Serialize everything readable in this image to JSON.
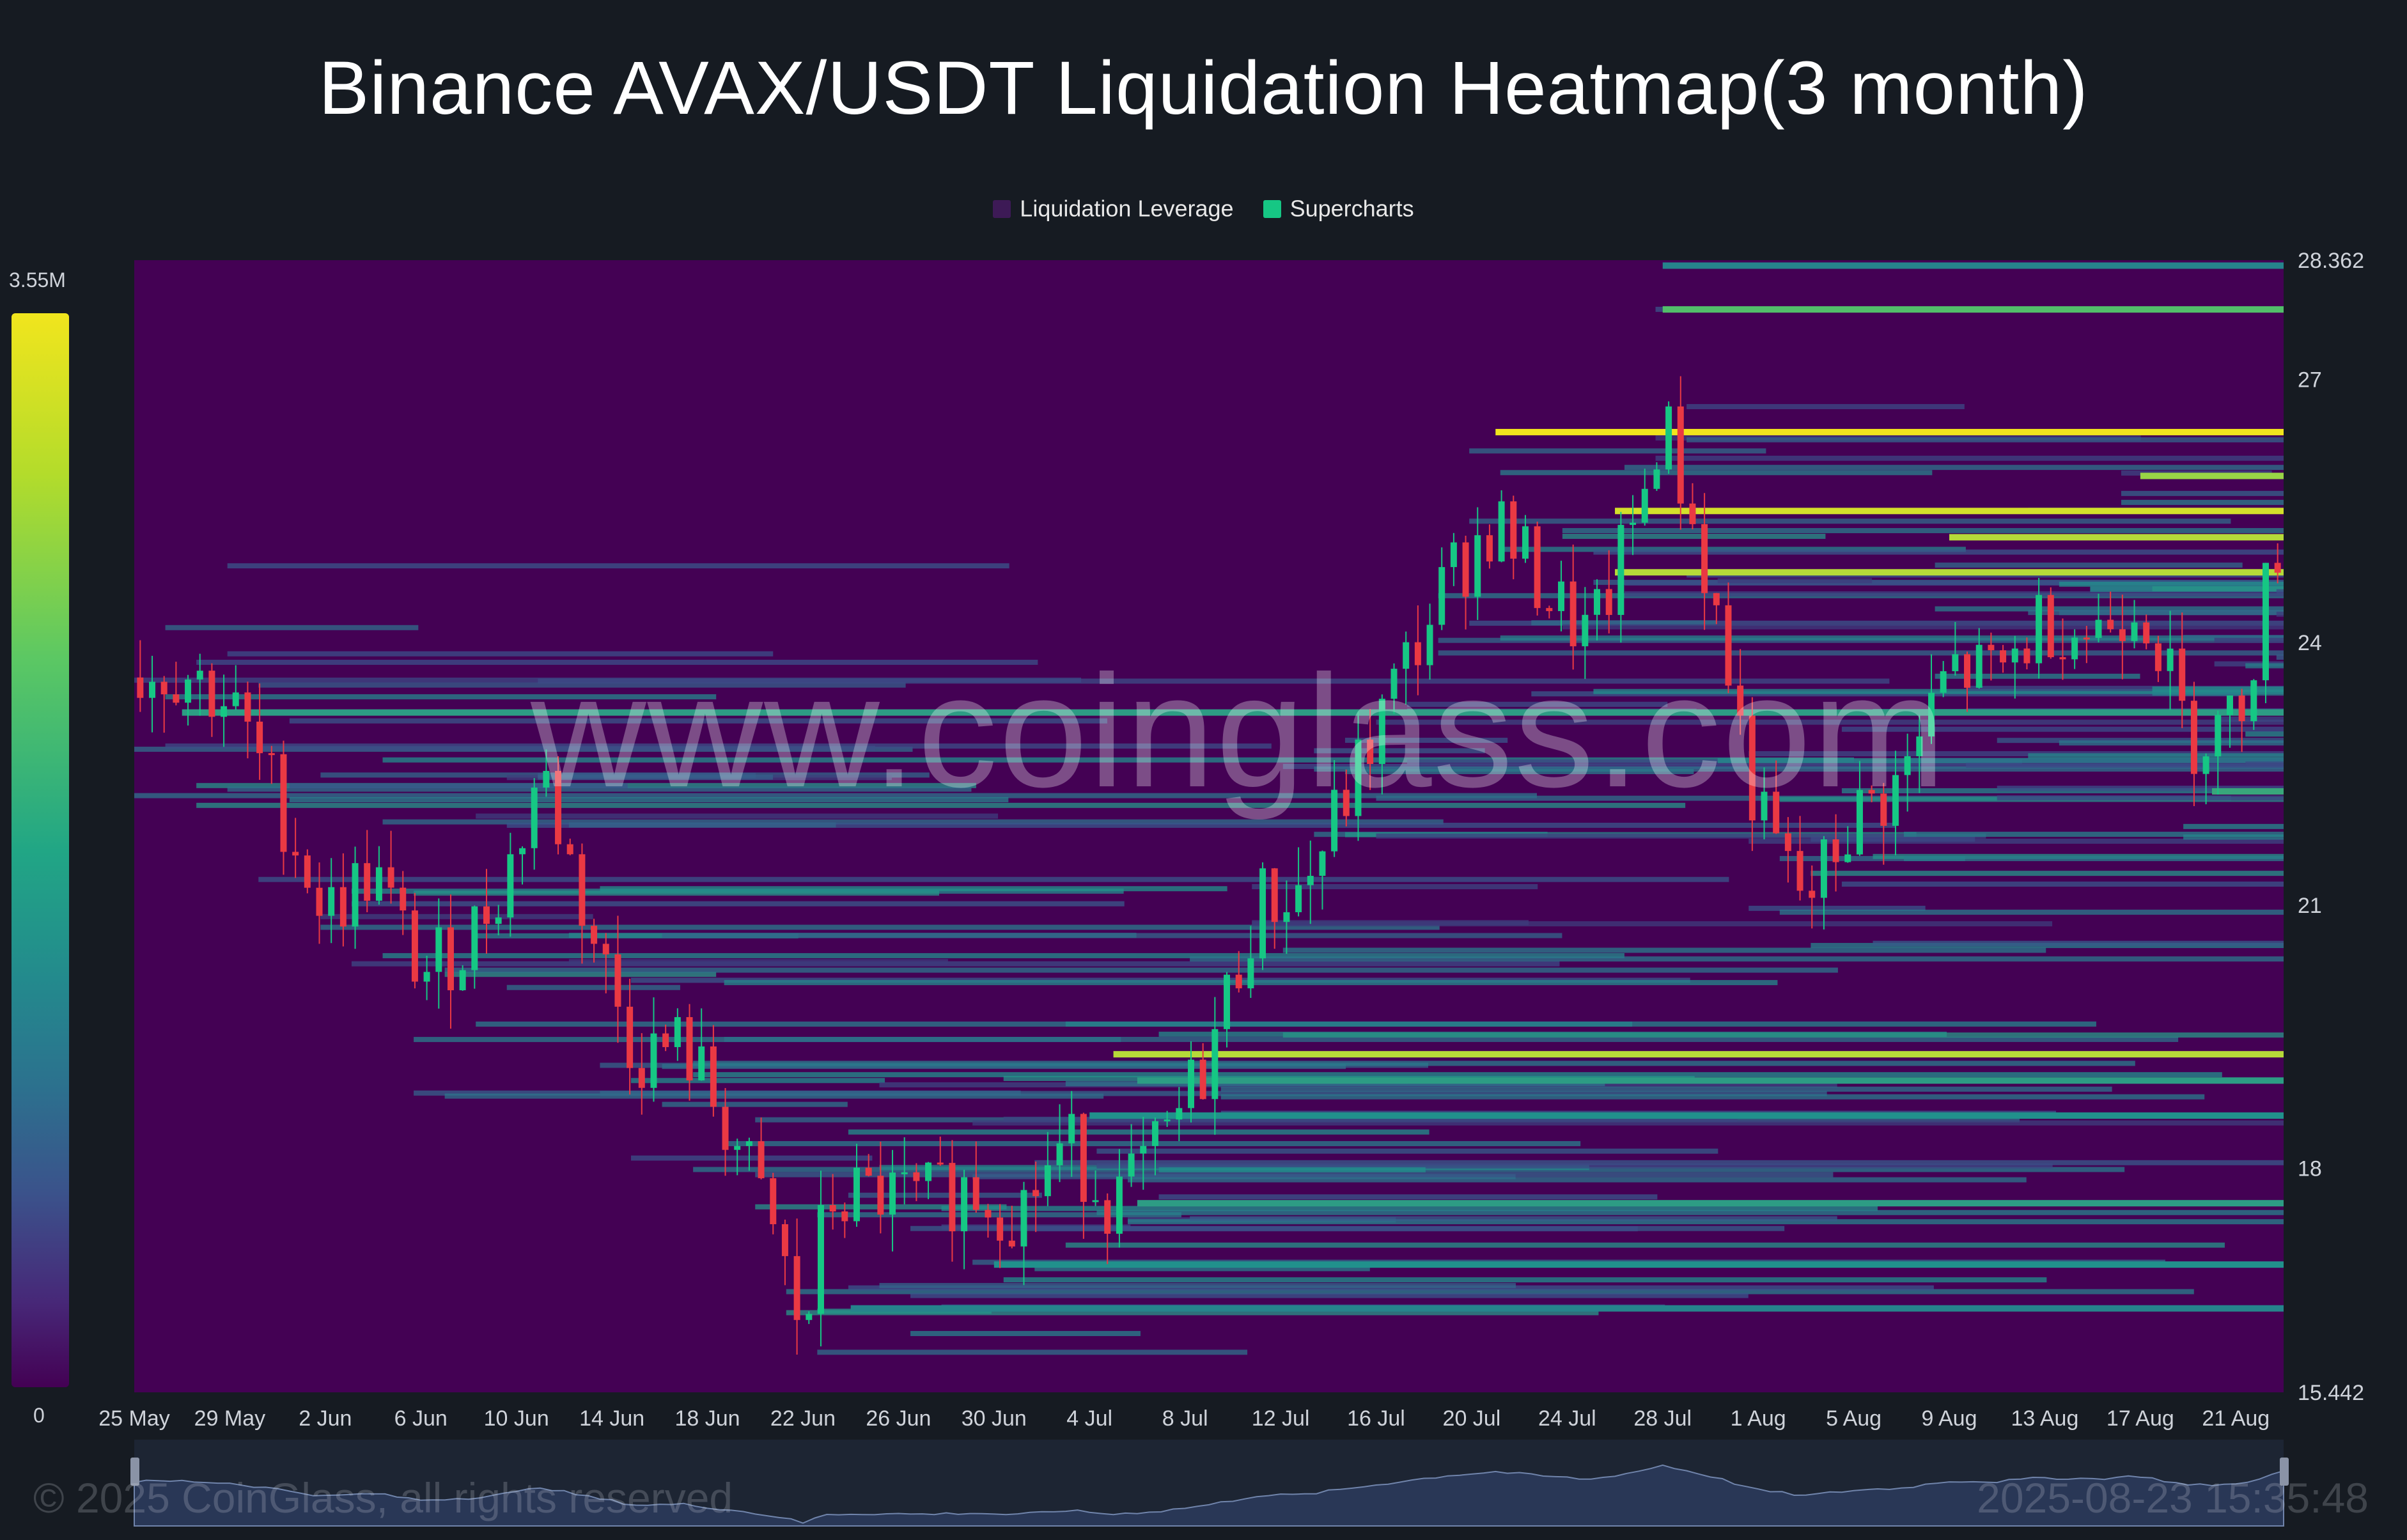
{
  "title": "Binance AVAX/USDT Liquidation Heatmap(3 month)",
  "legend": [
    {
      "label": "Liquidation Leverage",
      "color": "#3d1a56"
    },
    {
      "label": "Supercharts",
      "color": "#16c784"
    }
  ],
  "colorbar": {
    "max_label": "3.55M",
    "min_label": "0"
  },
  "watermark": "www.coinglass.com",
  "footer": {
    "copyright": "© 2025 CoinGlass, all rights reserved",
    "timestamp": "2025-08-23 15:35:48"
  },
  "colors": {
    "background": "#161b22",
    "heatmap_base": "#440154",
    "candle_up": "#16c784",
    "candle_down": "#ea3943",
    "navigator_fill": "#2b3a5a",
    "navigator_line": "#7a8fb8"
  },
  "chart_data": {
    "type": "heatmap",
    "x_tick_labels": [
      "25 May",
      "29 May",
      "2 Jun",
      "6 Jun",
      "10 Jun",
      "14 Jun",
      "18 Jun",
      "22 Jun",
      "26 Jun",
      "30 Jun",
      "4 Jul",
      "8 Jul",
      "12 Jul",
      "16 Jul",
      "20 Jul",
      "24 Jul",
      "28 Jul",
      "1 Aug",
      "5 Aug",
      "9 Aug",
      "13 Aug",
      "17 Aug",
      "21 Aug"
    ],
    "y_tick_labels": [
      "28.362",
      "27",
      "24",
      "21",
      "18",
      "15.442"
    ],
    "y_tick_values": [
      28.362,
      27,
      24,
      21,
      18,
      15.442
    ],
    "ylim": [
      15.442,
      28.362
    ],
    "x_start_day": "2025-05-25",
    "x_end_day": "2025-08-23",
    "price_path_daily": [
      {
        "date": "2025-05-25",
        "price": 23.6
      },
      {
        "date": "2025-05-27",
        "price": 23.7
      },
      {
        "date": "2025-05-29",
        "price": 23.3
      },
      {
        "date": "2025-05-31",
        "price": 22.2
      },
      {
        "date": "2025-06-02",
        "price": 20.9
      },
      {
        "date": "2025-06-04",
        "price": 21.4
      },
      {
        "date": "2025-06-06",
        "price": 20.2
      },
      {
        "date": "2025-06-08",
        "price": 20.6
      },
      {
        "date": "2025-06-10",
        "price": 21.6
      },
      {
        "date": "2025-06-11",
        "price": 22.6
      },
      {
        "date": "2025-06-13",
        "price": 20.8
      },
      {
        "date": "2025-06-15",
        "price": 19.3
      },
      {
        "date": "2025-06-17",
        "price": 19.4
      },
      {
        "date": "2025-06-19",
        "price": 18.4
      },
      {
        "date": "2025-06-21",
        "price": 17.1
      },
      {
        "date": "2025-06-22",
        "price": 16.0
      },
      {
        "date": "2025-06-23",
        "price": 17.6
      },
      {
        "date": "2025-06-25",
        "price": 17.7
      },
      {
        "date": "2025-06-27",
        "price": 17.6
      },
      {
        "date": "2025-06-29",
        "price": 17.8
      },
      {
        "date": "2025-07-01",
        "price": 17.5
      },
      {
        "date": "2025-07-03",
        "price": 18.3
      },
      {
        "date": "2025-07-05",
        "price": 17.6
      },
      {
        "date": "2025-07-07",
        "price": 18.2
      },
      {
        "date": "2025-07-09",
        "price": 19.3
      },
      {
        "date": "2025-07-11",
        "price": 21.0
      },
      {
        "date": "2025-07-13",
        "price": 21.2
      },
      {
        "date": "2025-07-15",
        "price": 22.4
      },
      {
        "date": "2025-07-17",
        "price": 23.6
      },
      {
        "date": "2025-07-19",
        "price": 24.7
      },
      {
        "date": "2025-07-21",
        "price": 25.4
      },
      {
        "date": "2025-07-23",
        "price": 24.6
      },
      {
        "date": "2025-07-25",
        "price": 24.0
      },
      {
        "date": "2025-07-27",
        "price": 25.5
      },
      {
        "date": "2025-07-28",
        "price": 26.6
      },
      {
        "date": "2025-07-30",
        "price": 24.6
      },
      {
        "date": "2025-08-01",
        "price": 22.0
      },
      {
        "date": "2025-08-03",
        "price": 21.0
      },
      {
        "date": "2025-08-05",
        "price": 22.0
      },
      {
        "date": "2025-08-07",
        "price": 22.4
      },
      {
        "date": "2025-08-09",
        "price": 23.7
      },
      {
        "date": "2025-08-11",
        "price": 23.6
      },
      {
        "date": "2025-08-13",
        "price": 24.3
      },
      {
        "date": "2025-08-15",
        "price": 24.1
      },
      {
        "date": "2025-08-17",
        "price": 24.6
      },
      {
        "date": "2025-08-19",
        "price": 22.9
      },
      {
        "date": "2025-08-21",
        "price": 23.1
      },
      {
        "date": "2025-08-23",
        "price": 25.4
      }
    ],
    "notable_liquidation_levels": [
      {
        "price": 28.3,
        "start_date": "2025-07-28",
        "intensity": 0.45
      },
      {
        "price": 27.8,
        "start_date": "2025-07-28",
        "intensity": 0.7
      },
      {
        "price": 26.4,
        "start_date": "2025-07-21",
        "intensity": 1.0
      },
      {
        "price": 25.5,
        "start_date": "2025-07-26",
        "intensity": 0.95
      },
      {
        "price": 24.8,
        "start_date": "2025-07-26",
        "intensity": 0.9
      },
      {
        "price": 25.9,
        "start_date": "2025-08-17",
        "intensity": 0.85
      },
      {
        "price": 25.2,
        "start_date": "2025-08-09",
        "intensity": 0.9
      },
      {
        "price": 23.2,
        "start_date": "2025-05-27",
        "intensity": 0.55
      },
      {
        "price": 22.3,
        "start_date": "2025-08-20",
        "intensity": 0.6
      },
      {
        "price": 19.0,
        "start_date": "2025-07-06",
        "intensity": 0.55
      },
      {
        "price": 18.6,
        "start_date": "2025-07-04",
        "intensity": 0.5
      },
      {
        "price": 17.6,
        "start_date": "2025-07-06",
        "intensity": 0.55
      },
      {
        "price": 16.9,
        "start_date": "2025-06-30",
        "intensity": 0.5
      },
      {
        "price": 16.4,
        "start_date": "2025-06-24",
        "intensity": 0.45
      },
      {
        "price": 19.3,
        "start_date": "2025-07-05",
        "intensity": 0.9
      }
    ],
    "title": "Binance AVAX/USDT Liquidation Heatmap(3 month)",
    "legend_placement": "top-center",
    "grid": false
  }
}
